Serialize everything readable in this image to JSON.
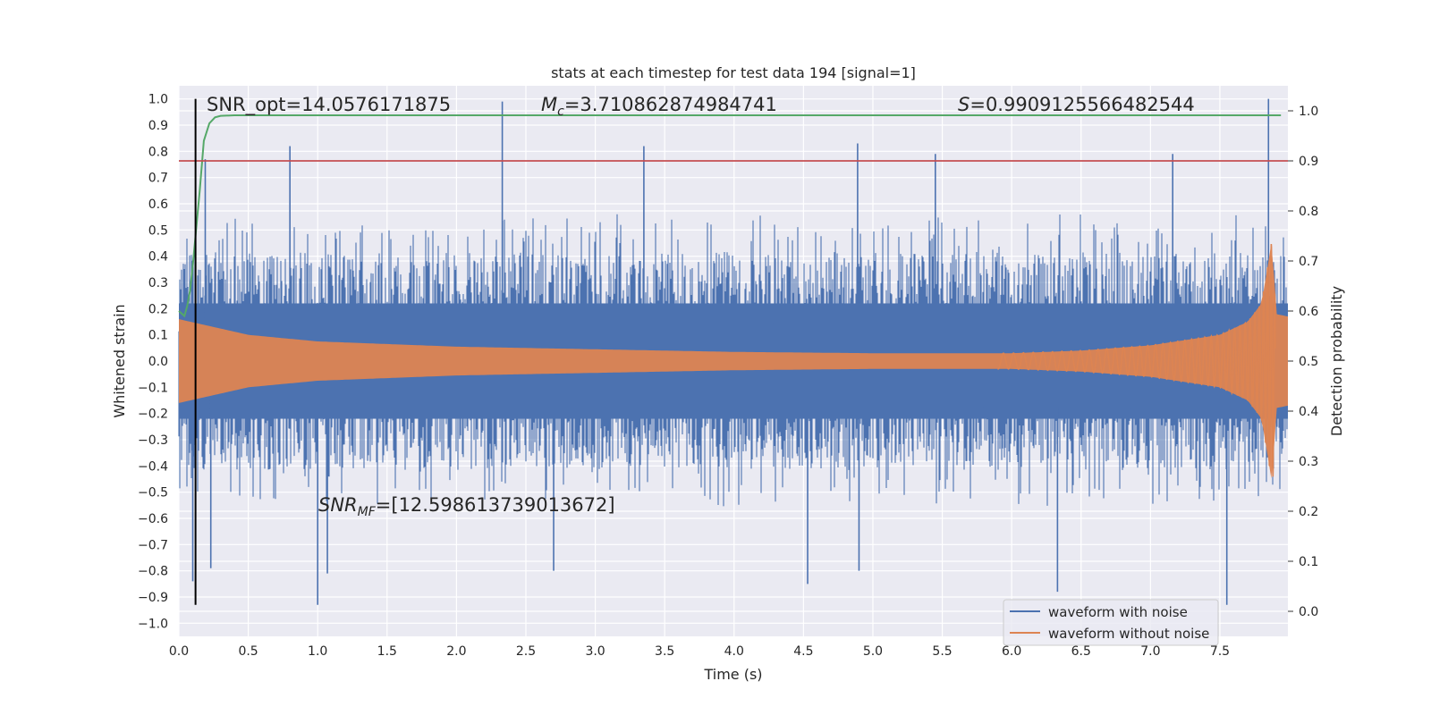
{
  "chart_data": {
    "type": "line",
    "title": "stats at each timestep for test data 194 [signal=1]",
    "xlabel": "Time (s)",
    "ylabel": "Whitened strain",
    "y2label": "Detection probability",
    "xlim": [
      0,
      7.99
    ],
    "ylim": [
      -1.05,
      1.05
    ],
    "y2lim": [
      -0.05,
      1.05
    ],
    "x_ticks": [
      0.0,
      0.5,
      1.0,
      1.5,
      2.0,
      2.5,
      3.0,
      3.5,
      4.0,
      4.5,
      5.0,
      5.5,
      6.0,
      6.5,
      7.0,
      7.5
    ],
    "x_tick_labels": [
      "0.0",
      "0.5",
      "1.0",
      "1.5",
      "2.0",
      "2.5",
      "3.0",
      "3.5",
      "4.0",
      "4.5",
      "5.0",
      "5.5",
      "6.0",
      "6.5",
      "7.0",
      "7.5"
    ],
    "y_ticks": [
      1.0,
      0.9,
      0.8,
      0.7,
      0.6,
      0.5,
      0.4,
      0.3,
      0.2,
      0.1,
      0.0,
      -0.1,
      -0.2,
      -0.3,
      -0.4,
      -0.5,
      -0.6,
      -0.7,
      -0.8,
      -0.9,
      -1.0
    ],
    "y_tick_labels": [
      "1.0",
      "0.9",
      "0.8",
      "0.7",
      "0.6",
      "0.5",
      "0.4",
      "0.3",
      "0.2",
      "0.1",
      "0.0",
      "−0.1",
      "−0.2",
      "−0.3",
      "−0.4",
      "−0.5",
      "−0.6",
      "−0.7",
      "−0.8",
      "−0.9",
      "−1.0"
    ],
    "y2_ticks": [
      1.0,
      0.9,
      0.8,
      0.7,
      0.6,
      0.5,
      0.4,
      0.3,
      0.2,
      0.1,
      0.0
    ],
    "y2_tick_labels": [
      "1.0",
      "0.9",
      "0.8",
      "0.7",
      "0.6",
      "0.5",
      "0.4",
      "0.3",
      "0.2",
      "0.1",
      "0.0"
    ],
    "grid": true,
    "background": "#eaeaf2",
    "annotations": {
      "snr_opt": "SNR_opt=14.0576171875",
      "chirp_mass_symbol": "M",
      "chirp_mass_subscript": "c",
      "chirp_mass_value": "=3.710862874984741",
      "score_symbol": "S",
      "score_value": "=0.9909125566482544",
      "snr_mf_symbol": "SNR",
      "snr_mf_subscript": "MF",
      "snr_mf_value": "=[12.598613739013672]"
    },
    "legend": {
      "placement": "lower-right",
      "entries": [
        "waveform with noise",
        "waveform without noise"
      ]
    },
    "series": [
      {
        "name": "waveform with noise",
        "axis": "left",
        "color": "#4c72b0",
        "kind": "noise",
        "x_range": [
          0,
          7.99
        ],
        "typical_amplitude": 0.45,
        "peaks": [
          {
            "x": 0.1,
            "y": -0.84
          },
          {
            "x": 0.19,
            "y": 0.77
          },
          {
            "x": 0.23,
            "y": -0.79
          },
          {
            "x": 0.8,
            "y": 0.82
          },
          {
            "x": 1.0,
            "y": -0.93
          },
          {
            "x": 1.07,
            "y": -0.81
          },
          {
            "x": 2.33,
            "y": 0.99
          },
          {
            "x": 2.7,
            "y": -0.8
          },
          {
            "x": 3.35,
            "y": 0.82
          },
          {
            "x": 4.53,
            "y": -0.85
          },
          {
            "x": 4.89,
            "y": 0.83
          },
          {
            "x": 4.9,
            "y": -0.8
          },
          {
            "x": 5.45,
            "y": 0.79
          },
          {
            "x": 6.33,
            "y": -0.88
          },
          {
            "x": 7.16,
            "y": 0.79
          },
          {
            "x": 7.55,
            "y": -0.93
          },
          {
            "x": 7.85,
            "y": 1.0
          }
        ]
      },
      {
        "name": "waveform without noise",
        "axis": "left",
        "color": "#dd8452",
        "kind": "chirp",
        "envelope": [
          {
            "x": 0.0,
            "y": 0.16
          },
          {
            "x": 0.5,
            "y": 0.1
          },
          {
            "x": 1.0,
            "y": 0.075
          },
          {
            "x": 2.0,
            "y": 0.055
          },
          {
            "x": 3.0,
            "y": 0.045
          },
          {
            "x": 4.0,
            "y": 0.035
          },
          {
            "x": 5.0,
            "y": 0.03
          },
          {
            "x": 6.0,
            "y": 0.03
          },
          {
            "x": 6.5,
            "y": 0.04
          },
          {
            "x": 7.0,
            "y": 0.06
          },
          {
            "x": 7.5,
            "y": 0.1
          },
          {
            "x": 7.7,
            "y": 0.15
          },
          {
            "x": 7.8,
            "y": 0.22
          },
          {
            "x": 7.85,
            "y": 0.38
          },
          {
            "x": 7.88,
            "y": 0.48
          },
          {
            "x": 7.9,
            "y": 0.18
          },
          {
            "x": 7.99,
            "y": 0.17
          }
        ]
      },
      {
        "axis": "right",
        "color": "#55a868",
        "x": [
          0.0,
          0.04,
          0.06,
          0.08,
          0.1,
          0.12,
          0.15,
          0.18,
          0.22,
          0.26,
          0.3,
          0.4,
          0.6,
          1.0,
          2.0,
          3.0,
          4.0,
          5.0,
          6.0,
          7.0,
          7.94
        ],
        "values": [
          0.6,
          0.59,
          0.61,
          0.64,
          0.69,
          0.75,
          0.84,
          0.94,
          0.975,
          0.987,
          0.99,
          0.991,
          0.991,
          0.991,
          0.991,
          0.991,
          0.991,
          0.991,
          0.991,
          0.991,
          0.991
        ]
      },
      {
        "axis": "right",
        "color": "#c44e52",
        "kind": "threshold",
        "values": [
          0.9
        ]
      }
    ],
    "vertical_marker": {
      "x": 0.12,
      "y_range": [
        -0.93,
        1.0
      ],
      "color": "#000000"
    }
  }
}
